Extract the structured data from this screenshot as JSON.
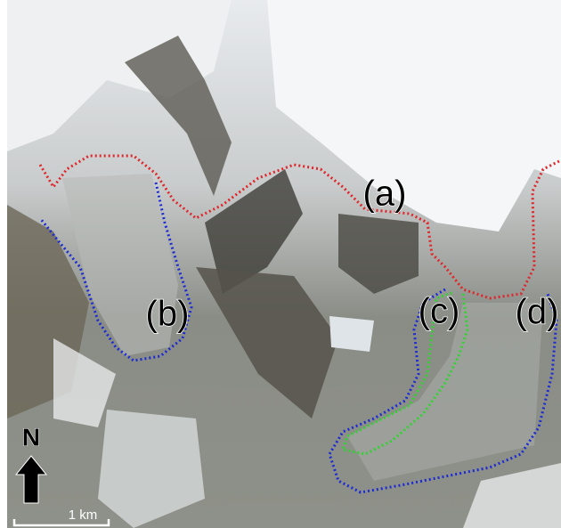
{
  "labels": [
    "(a)",
    "(b)",
    "(c)",
    "(d)"
  ],
  "north_arrow": "N",
  "scale_bar": "1 km"
}
